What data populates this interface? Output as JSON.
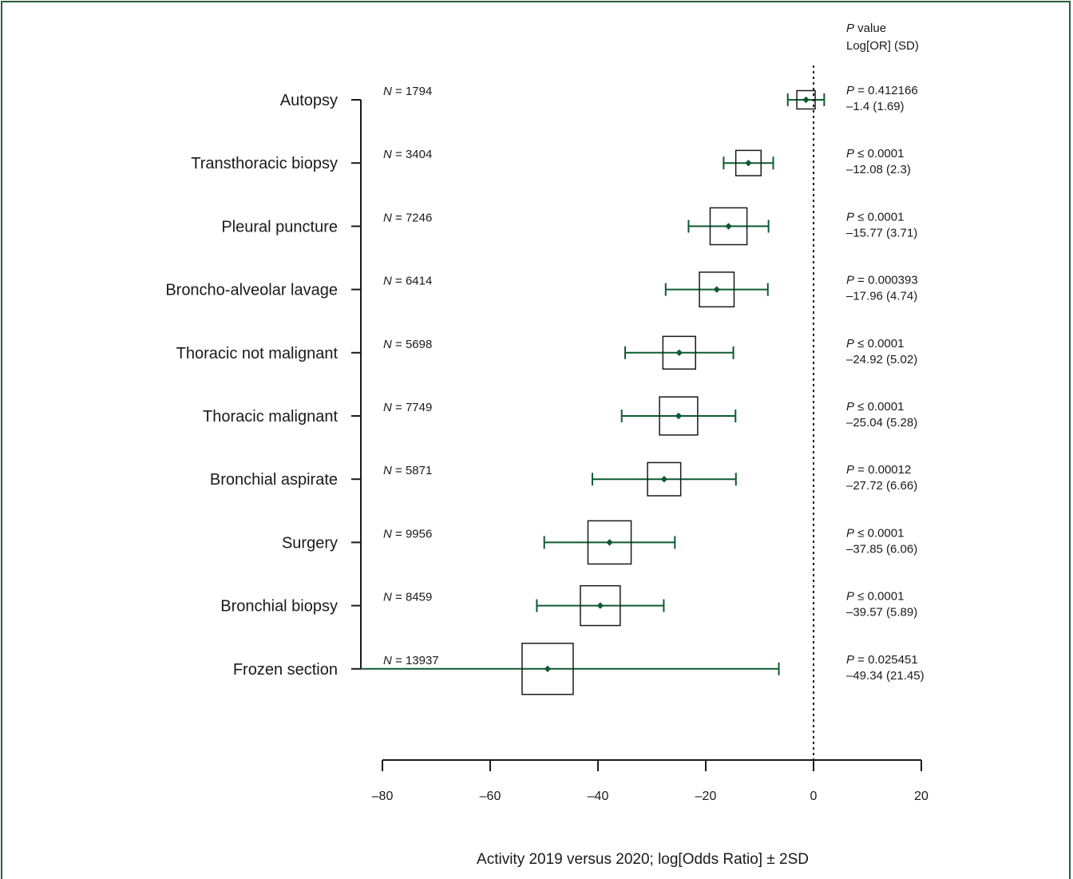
{
  "chart_data": {
    "type": "forest",
    "xlabel": "Activity 2019 versus 2020; log[Odds Ratio] ± 2SD",
    "xlim": [
      -80,
      20
    ],
    "x_ticks": [
      -80,
      -60,
      -40,
      -20,
      0,
      20
    ],
    "x_tick_labels": [
      "–80",
      "–60",
      "–40",
      "–20",
      "0",
      "20"
    ],
    "reference_line": 0,
    "right_header": {
      "line1_italic": "P",
      "line1_rest": " value",
      "line2": "Log[OR] (SD)"
    },
    "marker_color": "#0e5a32",
    "rows": [
      {
        "label": "Autopsy",
        "n_label": "N",
        "n_text": " = 1794",
        "n": 1794,
        "estimate": -1.4,
        "lower": -4.78,
        "upper": 1.98,
        "p_symbol": "=",
        "p_value": "0.412166",
        "p_line": " = 0.412166",
        "stat_line": "–1.4 (1.69)"
      },
      {
        "label": "Transthoracic biopsy",
        "n_label": "N",
        "n_text": " = 3404",
        "n": 3404,
        "estimate": -12.08,
        "lower": -16.68,
        "upper": -7.48,
        "p_symbol": "≤",
        "p_value": "0.0001",
        "p_line": " ≤ 0.0001",
        "stat_line": "–12.08 (2.3)"
      },
      {
        "label": "Pleural puncture",
        "n_label": "N",
        "n_text": " = 7246",
        "n": 7246,
        "estimate": -15.77,
        "lower": -23.19,
        "upper": -8.35,
        "p_symbol": "≤",
        "p_value": "0.0001",
        "p_line": " ≤ 0.0001",
        "stat_line": "–15.77 (3.71)"
      },
      {
        "label": "Broncho-alveolar lavage",
        "n_label": "N",
        "n_text": " = 6414",
        "n": 6414,
        "estimate": -17.96,
        "lower": -27.44,
        "upper": -8.48,
        "p_symbol": "=",
        "p_value": "0.000393",
        "p_line": " = 0.000393",
        "stat_line": "–17.96 (4.74)"
      },
      {
        "label": "Thoracic not malignant",
        "n_label": "N",
        "n_text": " = 5698",
        "n": 5698,
        "estimate": -24.92,
        "lower": -34.96,
        "upper": -14.88,
        "p_symbol": "≤",
        "p_value": "0.0001",
        "p_line": " ≤ 0.0001",
        "stat_line": "–24.92 (5.02)"
      },
      {
        "label": "Thoracic malignant",
        "n_label": "N",
        "n_text": " = 7749",
        "n": 7749,
        "estimate": -25.04,
        "lower": -35.6,
        "upper": -14.48,
        "p_symbol": "≤",
        "p_value": "0.0001",
        "p_line": " ≤ 0.0001",
        "stat_line": "–25.04 (5.28)"
      },
      {
        "label": "Bronchial aspirate",
        "n_label": "N",
        "n_text": " = 5871",
        "n": 5871,
        "estimate": -27.72,
        "lower": -41.04,
        "upper": -14.4,
        "p_symbol": "=",
        "p_value": "0.00012",
        "p_line": " = 0.00012",
        "stat_line": "–27.72 (6.66)"
      },
      {
        "label": "Surgery",
        "n_label": "N",
        "n_text": " = 9956",
        "n": 9956,
        "estimate": -37.85,
        "lower": -49.97,
        "upper": -25.73,
        "p_symbol": "≤",
        "p_value": "0.0001",
        "p_line": " ≤ 0.0001",
        "stat_line": "–37.85 (6.06)"
      },
      {
        "label": "Bronchial biopsy",
        "n_label": "N",
        "n_text": " = 8459",
        "n": 8459,
        "estimate": -39.57,
        "lower": -51.35,
        "upper": -27.79,
        "p_symbol": "≤",
        "p_value": "0.0001",
        "p_line": " ≤ 0.0001",
        "stat_line": "–39.57 (5.89)"
      },
      {
        "label": "Frozen section",
        "n_label": "N",
        "n_text": " = 13937",
        "n": 13937,
        "estimate": -49.34,
        "lower": -92.24,
        "upper": -6.44,
        "p_symbol": "=",
        "p_value": "0.025451",
        "p_line": " = 0.025451",
        "stat_line": "–49.34 (21.45)"
      }
    ]
  }
}
